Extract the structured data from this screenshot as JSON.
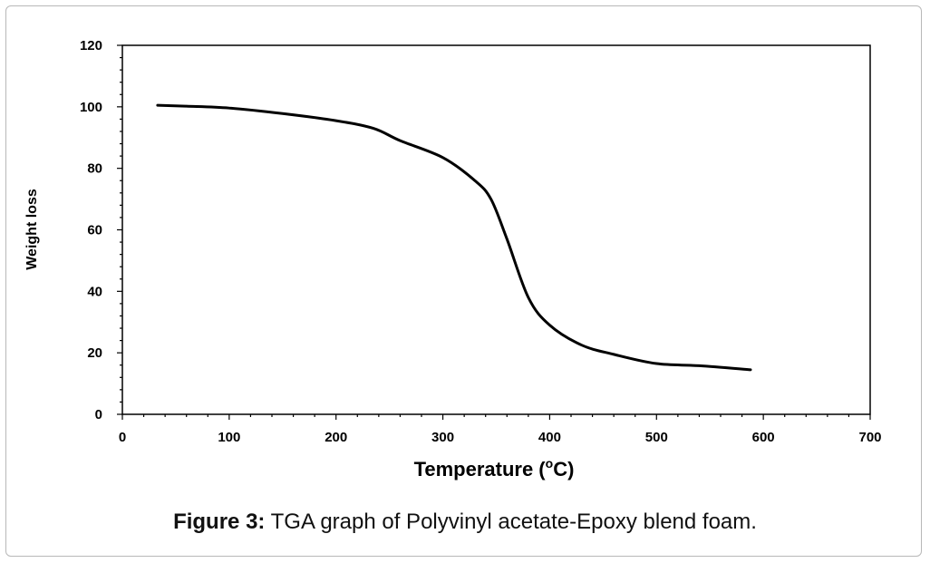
{
  "chart_data": {
    "type": "line",
    "xlabel": "Temperature (°C)",
    "xlabel_parts": {
      "pre": "Temperature (",
      "sup": "o",
      "post": "C)"
    },
    "ylabel": "Weight loss",
    "xlim": [
      0,
      700
    ],
    "ylim": [
      0,
      120
    ],
    "x_ticks": [
      0,
      100,
      200,
      300,
      400,
      500,
      600,
      700
    ],
    "y_ticks": [
      0,
      20,
      40,
      60,
      80,
      100,
      120
    ],
    "grid": false,
    "legend": "none",
    "line_color": "#000000",
    "series": [
      {
        "x": [
          33,
          60,
          100,
          150,
          200,
          235,
          260,
          300,
          330,
          345,
          360,
          380,
          400,
          430,
          460,
          500,
          540,
          588
        ],
        "y": [
          100.5,
          100.2,
          99.6,
          97.8,
          95.5,
          93,
          89,
          83.5,
          76,
          70,
          57,
          38,
          29,
          22.5,
          19.5,
          16.5,
          15.8,
          14.5
        ]
      }
    ]
  },
  "caption": {
    "label": "Figure 3:",
    "text": " TGA graph of Polyvinyl acetate-Epoxy blend foam."
  }
}
